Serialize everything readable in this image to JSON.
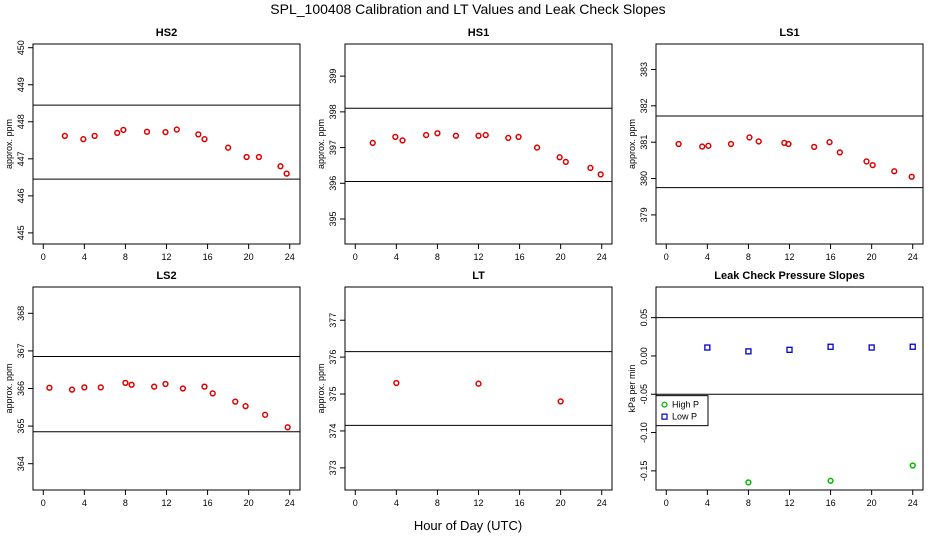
{
  "figure": {
    "title": "SPL_100408  Calibration and LT Values and Leak Check Slopes",
    "xlabel": "Hour of Day (UTC)"
  },
  "chart_data": [
    {
      "type": "scatter",
      "title": "HS2",
      "ylabel": "approx. ppm",
      "xlim": [
        -1,
        25
      ],
      "xticks": [
        0,
        4,
        8,
        12,
        16,
        20,
        24
      ],
      "ylim": [
        444.7,
        450.1
      ],
      "yticks": [
        445,
        446,
        447,
        448,
        449,
        450
      ],
      "hlines": [
        448.45,
        446.45
      ],
      "series": [
        {
          "color": "#dd0000",
          "x": [
            2.1,
            3.9,
            5.0,
            7.2,
            7.8,
            10.1,
            11.9,
            13.0,
            15.1,
            15.7,
            18.0,
            19.8,
            21.0,
            23.1,
            23.7
          ],
          "y": [
            447.62,
            447.53,
            447.62,
            447.7,
            447.78,
            447.73,
            447.72,
            447.79,
            447.66,
            447.53,
            447.3,
            447.05,
            447.05,
            446.8,
            446.6
          ]
        }
      ]
    },
    {
      "type": "scatter",
      "title": "HS1",
      "ylabel": "approx. ppm",
      "xlim": [
        -1,
        25
      ],
      "xticks": [
        0,
        4,
        8,
        12,
        16,
        20,
        24
      ],
      "ylim": [
        394.3,
        399.9
      ],
      "yticks": [
        395,
        396,
        397,
        398,
        399
      ],
      "hlines": [
        398.1,
        396.05
      ],
      "series": [
        {
          "color": "#dd0000",
          "x": [
            1.7,
            3.9,
            4.6,
            6.9,
            8.0,
            9.8,
            12.0,
            12.7,
            14.9,
            15.9,
            17.7,
            19.9,
            20.5,
            22.9,
            23.9
          ],
          "y": [
            397.13,
            397.3,
            397.2,
            397.35,
            397.4,
            397.33,
            397.33,
            397.35,
            397.27,
            397.3,
            397.0,
            396.73,
            396.6,
            396.43,
            396.25
          ]
        }
      ]
    },
    {
      "type": "scatter",
      "title": "LS1",
      "ylabel": "approx. ppm",
      "xlim": [
        -1,
        25
      ],
      "xticks": [
        0,
        4,
        8,
        12,
        16,
        20,
        24
      ],
      "ylim": [
        378.2,
        383.7
      ],
      "yticks": [
        379,
        380,
        381,
        382,
        383
      ],
      "hlines": [
        381.72,
        379.75
      ],
      "series": [
        {
          "color": "#dd0000",
          "x": [
            1.2,
            3.5,
            4.1,
            6.3,
            8.1,
            9.0,
            11.5,
            11.9,
            14.4,
            15.9,
            16.9,
            19.5,
            20.1,
            22.2,
            23.9
          ],
          "y": [
            380.95,
            380.88,
            380.9,
            380.95,
            381.13,
            381.02,
            380.98,
            380.95,
            380.87,
            381.0,
            380.72,
            380.47,
            380.37,
            380.2,
            380.05
          ]
        }
      ]
    },
    {
      "type": "scatter",
      "title": "LS2",
      "ylabel": "approx. ppm",
      "xlim": [
        -1,
        25
      ],
      "xticks": [
        0,
        4,
        8,
        12,
        16,
        20,
        24
      ],
      "ylim": [
        363.3,
        368.7
      ],
      "yticks": [
        364,
        365,
        366,
        367,
        368
      ],
      "hlines": [
        366.85,
        364.85
      ],
      "series": [
        {
          "color": "#dd0000",
          "x": [
            0.6,
            2.8,
            4.0,
            5.6,
            8.0,
            8.6,
            10.8,
            11.9,
            13.6,
            15.7,
            16.5,
            18.7,
            19.7,
            21.6,
            23.8
          ],
          "y": [
            366.02,
            365.97,
            366.03,
            366.03,
            366.15,
            366.1,
            366.05,
            366.12,
            366.0,
            366.05,
            365.87,
            365.65,
            365.53,
            365.3,
            364.97
          ]
        }
      ]
    },
    {
      "type": "scatter",
      "title": "LT",
      "ylabel": "approx. ppm",
      "xlim": [
        -1,
        25
      ],
      "xticks": [
        0,
        4,
        8,
        12,
        16,
        20,
        24
      ],
      "ylim": [
        372.4,
        377.9
      ],
      "yticks": [
        373,
        374,
        375,
        376,
        377
      ],
      "hlines": [
        376.15,
        374.15
      ],
      "series": [
        {
          "color": "#dd0000",
          "x": [
            4.0,
            12.0,
            20.0
          ],
          "y": [
            375.3,
            375.28,
            374.8
          ]
        }
      ]
    },
    {
      "type": "scatter",
      "title": "Leak Check Pressure Slopes",
      "ylabel": "kPa per min",
      "xlim": [
        -1,
        25
      ],
      "xticks": [
        0,
        4,
        8,
        12,
        16,
        20,
        24
      ],
      "ylim": [
        -0.175,
        0.09
      ],
      "yticks": [
        -0.15,
        -0.1,
        -0.05,
        0.0,
        0.05
      ],
      "yticklabels": [
        "-0.15",
        "-0.10",
        "-0.05",
        "0.00",
        "0.05"
      ],
      "hlines": [
        0.05,
        -0.05
      ],
      "legend": "center-left",
      "series": [
        {
          "name": "High P",
          "color": "#00bb00",
          "marker": "circle",
          "x": [
            8,
            16,
            24
          ],
          "y": [
            -0.165,
            -0.163,
            -0.143
          ]
        },
        {
          "name": "Low P",
          "color": "#0000cc",
          "marker": "square",
          "x": [
            4,
            8,
            12,
            16,
            20,
            24
          ],
          "y": [
            0.011,
            0.006,
            0.008,
            0.012,
            0.011,
            0.012
          ]
        }
      ]
    }
  ]
}
